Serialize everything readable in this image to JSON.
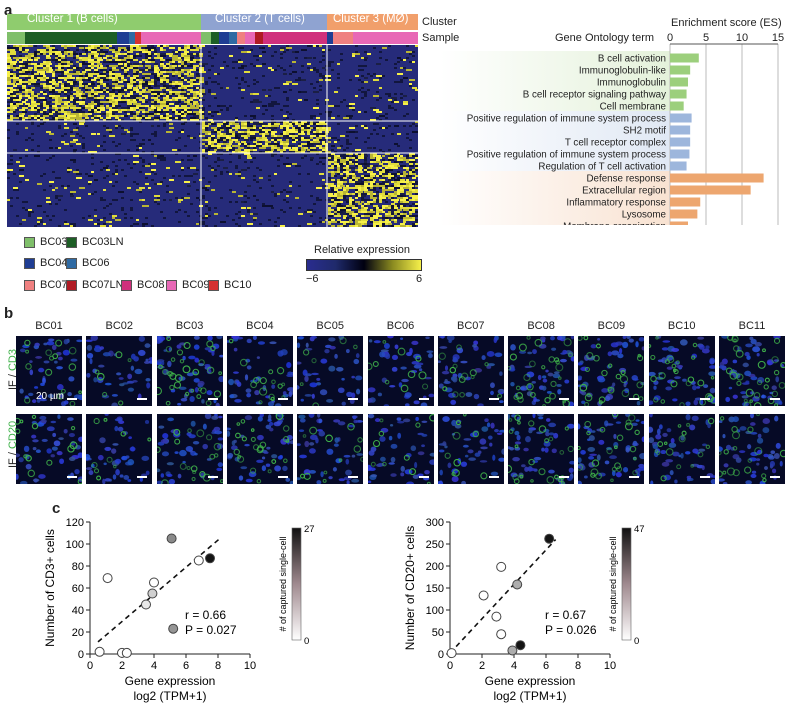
{
  "panels": {
    "a": "a",
    "b": "b",
    "c": "c"
  },
  "heatmap": {
    "clusters": [
      {
        "label": "Cluster 1 (B cells)",
        "color": "#8fcc6e"
      },
      {
        "label": "Cluster 2 (T cells)",
        "color": "#8fa3d1"
      },
      {
        "label": "Cluster 3 (MØ)",
        "color": "#f19f6b"
      }
    ],
    "row_labels": {
      "cluster": "Cluster",
      "sample": "Sample"
    },
    "sample_legend": [
      {
        "label": "BC03",
        "color": "#7fbf6a"
      },
      {
        "label": "BC03LN",
        "color": "#1d5e25"
      },
      {
        "label": "BC04",
        "color": "#1f3d93"
      },
      {
        "label": "BC06",
        "color": "#2f6aa3"
      },
      {
        "label": "BC07",
        "color": "#ef8080"
      },
      {
        "label": "BC07LN",
        "color": "#b01b24"
      },
      {
        "label": "BC08",
        "color": "#d0307c"
      },
      {
        "label": "BC09",
        "color": "#e868b6"
      },
      {
        "label": "BC10",
        "color": "#d43131"
      }
    ],
    "colorbar": {
      "title": "Relative expression",
      "min_label": "−6",
      "max_label": "6"
    }
  },
  "go": {
    "header_term": "Gene Ontology term",
    "header_es": "Enrichment score (ES)",
    "ticks": [
      "0",
      "5",
      "10",
      "15"
    ],
    "groups": [
      {
        "color": "#9ccf7c",
        "bg": "#e4f1da"
      },
      {
        "color": "#9db6dc",
        "bg": "#e0e8f4"
      },
      {
        "color": "#eda66f",
        "bg": "#f8e2d1"
      }
    ],
    "terms": [
      {
        "term": "B cell activation",
        "es": 4.0,
        "group": 0
      },
      {
        "term": "Immunoglobulin-like",
        "es": 2.8,
        "group": 0
      },
      {
        "term": "Immunoglobulin",
        "es": 2.5,
        "group": 0
      },
      {
        "term": "B cell receptor signaling pathway",
        "es": 2.3,
        "group": 0
      },
      {
        "term": "Cell membrane",
        "es": 1.9,
        "group": 0
      },
      {
        "term": "Positive regulation of immune system process",
        "es": 3.0,
        "group": 1
      },
      {
        "term": "SH2 motif",
        "es": 2.8,
        "group": 1
      },
      {
        "term": "T cell receptor complex",
        "es": 2.8,
        "group": 1
      },
      {
        "term": "Positive regulation of immune system process",
        "es": 2.7,
        "group": 1
      },
      {
        "term": "Regulation of T cell activation",
        "es": 2.3,
        "group": 1
      },
      {
        "term": "Defense response",
        "es": 13.0,
        "group": 2
      },
      {
        "term": "Extracellular region",
        "es": 11.2,
        "group": 2
      },
      {
        "term": "Inflammatory response",
        "es": 4.2,
        "group": 2
      },
      {
        "term": "Lysosome",
        "es": 3.8,
        "group": 2
      },
      {
        "term": "Membrane organization",
        "es": 2.5,
        "group": 2
      }
    ]
  },
  "if": {
    "samples": [
      "BC01",
      "BC02",
      "BC03",
      "BC04",
      "BC05",
      "BC06",
      "BC07",
      "BC08",
      "BC09",
      "BC10",
      "BC11"
    ],
    "row_labels": [
      {
        "prefix": "IF / ",
        "marker": "CD3"
      },
      {
        "prefix": "IF / ",
        "marker": "CD20"
      }
    ],
    "scalebar_label": "20 µm",
    "marker_color": "#3fb24a",
    "cd3_intensity": [
      0.5,
      0.2,
      1.0,
      0.5,
      0.2,
      0.35,
      0.45,
      0.9,
      0.85,
      0.85,
      0.95
    ],
    "cd20_intensity": [
      0.45,
      0.3,
      0.6,
      0.75,
      0.4,
      0.35,
      0.3,
      0.8,
      0.8,
      0.5,
      0.6
    ]
  },
  "chart_data": [
    {
      "type": "scatter",
      "xlabel": "Gene expression",
      "xlabel2": "log2 (TPM+1)",
      "ylabel": "Number of CD3+ cells",
      "xlim": [
        0,
        10
      ],
      "ylim": [
        0,
        120
      ],
      "xticks": [
        0,
        2,
        4,
        6,
        8,
        10
      ],
      "yticks": [
        0,
        20,
        40,
        60,
        80,
        100,
        120
      ],
      "stat_r": "r = 0.66",
      "stat_p": "P = 0.027",
      "colorbar": {
        "title": "# of captured single-cell",
        "max": "27",
        "min": "0"
      },
      "points": [
        {
          "x": 0.6,
          "y": 2,
          "c": 0
        },
        {
          "x": 1.1,
          "y": 69,
          "c": 0
        },
        {
          "x": 2.0,
          "y": 1,
          "c": 0
        },
        {
          "x": 2.3,
          "y": 1,
          "c": 0
        },
        {
          "x": 3.5,
          "y": 45,
          "c": 0.1
        },
        {
          "x": 3.9,
          "y": 55,
          "c": 0.2
        },
        {
          "x": 4.0,
          "y": 65,
          "c": 0
        },
        {
          "x": 5.1,
          "y": 105,
          "c": 0.5
        },
        {
          "x": 5.2,
          "y": 23,
          "c": 0.45
        },
        {
          "x": 6.8,
          "y": 85,
          "c": 0
        },
        {
          "x": 7.5,
          "y": 87,
          "c": 1.0
        }
      ],
      "fit": {
        "x0": 0.5,
        "y0": 11,
        "x1": 8.2,
        "y1": 106
      }
    },
    {
      "type": "scatter",
      "xlabel": "Gene expression",
      "xlabel2": "log2 (TPM+1)",
      "ylabel": "Number of CD20+ cells",
      "xlim": [
        0,
        10
      ],
      "ylim": [
        0,
        300
      ],
      "xticks": [
        0,
        2,
        4,
        6,
        8,
        10
      ],
      "yticks": [
        0,
        50,
        100,
        150,
        200,
        250,
        300
      ],
      "stat_r": "r = 0.67",
      "stat_p": "P = 0.026",
      "colorbar": {
        "title": "# of captured single-cell",
        "max": "47",
        "min": "0"
      },
      "points": [
        {
          "x": 0.1,
          "y": 2,
          "c": 0
        },
        {
          "x": 2.1,
          "y": 133,
          "c": 0
        },
        {
          "x": 2.9,
          "y": 85,
          "c": 0
        },
        {
          "x": 3.2,
          "y": 198,
          "c": 0
        },
        {
          "x": 3.2,
          "y": 45,
          "c": 0
        },
        {
          "x": 3.9,
          "y": 8,
          "c": 0.35
        },
        {
          "x": 4.2,
          "y": 158,
          "c": 0.35
        },
        {
          "x": 4.4,
          "y": 20,
          "c": 1.0
        },
        {
          "x": 6.2,
          "y": 262,
          "c": 1.0
        }
      ],
      "fit": {
        "x0": 0,
        "y0": 2,
        "x1": 6.6,
        "y1": 260
      }
    }
  ]
}
